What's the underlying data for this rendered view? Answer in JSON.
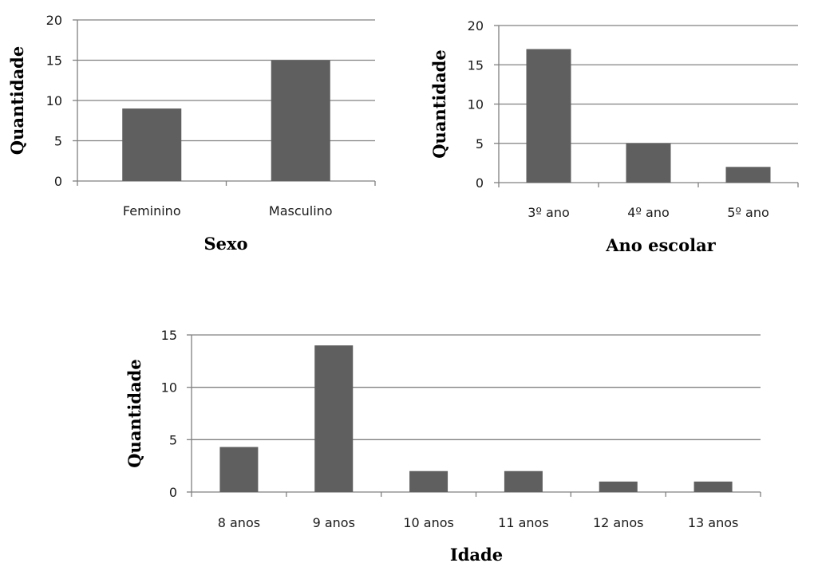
{
  "chart_data": [
    {
      "type": "bar",
      "categories": [
        "Feminino",
        "Masculino"
      ],
      "values": [
        9,
        15
      ],
      "xlabel": "Sexo",
      "ylabel": "Quantidade",
      "ylim": [
        0,
        20
      ],
      "yticks": [
        0,
        5,
        10,
        15,
        20
      ],
      "grid": true
    },
    {
      "type": "bar",
      "categories": [
        "3º ano",
        "4º ano",
        "5º ano"
      ],
      "values": [
        17,
        5,
        2
      ],
      "xlabel": "Ano escolar",
      "ylabel": "Quantidade",
      "ylim": [
        0,
        20
      ],
      "yticks": [
        0,
        5,
        10,
        15,
        20
      ],
      "grid": true
    },
    {
      "type": "bar",
      "categories": [
        "8 anos",
        "9 anos",
        "10 anos",
        "11 anos",
        "12 anos",
        "13 anos"
      ],
      "values": [
        4.3,
        14,
        2,
        2,
        1,
        1
      ],
      "xlabel": "Idade",
      "ylabel": "Quantidade",
      "ylim": [
        0,
        15
      ],
      "yticks": [
        0,
        5,
        10,
        15
      ],
      "grid": true
    }
  ],
  "colors": {
    "bar": "#5f5f5f",
    "gridline": "#808080",
    "axis": "#808080"
  }
}
